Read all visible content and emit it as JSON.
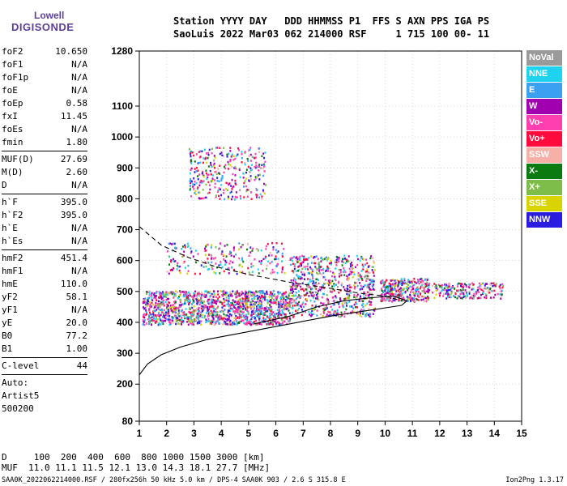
{
  "logo": {
    "line1": "Lowell",
    "line2": "DIGISONDE"
  },
  "header": {
    "line1": "Station YYYY DAY   DDD HHMMSS P1  FFS S AXN PPS IGA PS",
    "line2": "SaoLuis 2022 Mar03 062 214000 RSF     1 715 100 00- 11"
  },
  "params": [
    {
      "name": "foF2",
      "value": "10.650"
    },
    {
      "name": "foF1",
      "value": "N/A"
    },
    {
      "name": "foF1p",
      "value": "N/A"
    },
    {
      "name": "foE",
      "value": "N/A"
    },
    {
      "name": "foEp",
      "value": "0.58"
    },
    {
      "name": "fxI",
      "value": "11.45"
    },
    {
      "name": "foEs",
      "value": "N/A"
    },
    {
      "name": "fmin",
      "value": "1.80",
      "sep": true
    },
    {
      "name": "MUF(D)",
      "value": "27.69"
    },
    {
      "name": "M(D)",
      "value": "2.60"
    },
    {
      "name": "D",
      "value": "N/A",
      "sep": true
    },
    {
      "name": "h`F",
      "value": "395.0"
    },
    {
      "name": "h`F2",
      "value": "395.0"
    },
    {
      "name": "h`E",
      "value": "N/A"
    },
    {
      "name": "h`Es",
      "value": "N/A",
      "sep": true
    },
    {
      "name": "hmF2",
      "value": "451.4"
    },
    {
      "name": "hmF1",
      "value": "N/A"
    },
    {
      "name": "hmE",
      "value": "110.0"
    },
    {
      "name": "yF2",
      "value": "58.1"
    },
    {
      "name": "yF1",
      "value": "N/A"
    },
    {
      "name": "yE",
      "value": "20.0"
    },
    {
      "name": "B0",
      "value": "77.2"
    },
    {
      "name": "B1",
      "value": "1.00",
      "sep": true
    },
    {
      "name": "C-level",
      "value": "44",
      "sep": true
    },
    {
      "name": "Auto:",
      "value": ""
    },
    {
      "name": "Artist5",
      "value": ""
    },
    {
      "name": "500200",
      "value": ""
    }
  ],
  "legend": [
    {
      "label": "NoVal",
      "color": "#9a9a9a"
    },
    {
      "label": "NNE",
      "color": "#1fd3f0"
    },
    {
      "label": "E",
      "color": "#3aa0ef"
    },
    {
      "label": "W",
      "color": "#a100b0"
    },
    {
      "label": "Vo-",
      "color": "#ff3fb0"
    },
    {
      "label": "Vo+",
      "color": "#ff0a3c"
    },
    {
      "label": "SSW",
      "color": "#f7b0a8"
    },
    {
      "label": "X-",
      "color": "#0b7a10"
    },
    {
      "label": "X+",
      "color": "#7fbd4a"
    },
    {
      "label": "SSE",
      "color": "#d9d400"
    },
    {
      "label": "NNW",
      "color": "#2b1de0"
    }
  ],
  "chart_data": {
    "type": "scatter",
    "xlim": [
      1,
      15
    ],
    "ylim": [
      80,
      1280
    ],
    "x_ticks": [
      1,
      2,
      3,
      4,
      5,
      6,
      7,
      8,
      9,
      10,
      11,
      12,
      13,
      14,
      15
    ],
    "y_ticks": [
      80,
      200,
      300,
      400,
      500,
      600,
      700,
      800,
      900,
      1000,
      1100,
      1280
    ],
    "grid": true,
    "profile_solid": [
      [
        1.0,
        230
      ],
      [
        1.3,
        265
      ],
      [
        1.8,
        295
      ],
      [
        2.5,
        320
      ],
      [
        3.5,
        345
      ],
      [
        5,
        370
      ],
      [
        6.5,
        395
      ],
      [
        8,
        420
      ],
      [
        9.5,
        440
      ],
      [
        10.6,
        455
      ]
    ],
    "trace_solid": [
      [
        5.2,
        395
      ],
      [
        6.5,
        420
      ],
      [
        7.5,
        450
      ],
      [
        8.5,
        470
      ],
      [
        9.5,
        480
      ],
      [
        10.3,
        485
      ],
      [
        10.8,
        470
      ],
      [
        10.6,
        455
      ]
    ],
    "trace_dashed": [
      [
        1.0,
        710
      ],
      [
        1.8,
        650
      ],
      [
        2.8,
        610
      ],
      [
        3.8,
        580
      ],
      [
        5,
        555
      ],
      [
        6.5,
        530
      ],
      [
        8,
        510
      ],
      [
        9,
        495
      ],
      [
        10,
        485
      ],
      [
        10.6,
        470
      ]
    ],
    "clusters": [
      {
        "x": [
          1.1,
          6.5
        ],
        "y": [
          395,
          505
        ],
        "n": 1400
      },
      {
        "x": [
          6.5,
          9.6
        ],
        "y": [
          420,
          620
        ],
        "n": 700
      },
      {
        "x": [
          9.8,
          11.6
        ],
        "y": [
          470,
          545
        ],
        "n": 320
      },
      {
        "x": [
          11.7,
          14.3
        ],
        "y": [
          480,
          530
        ],
        "n": 200
      },
      {
        "x": [
          2.0,
          6.3
        ],
        "y": [
          560,
          660
        ],
        "n": 220
      },
      {
        "x": [
          2.8,
          5.6
        ],
        "y": [
          800,
          970
        ],
        "n": 320
      }
    ]
  },
  "bottom": {
    "line1": "D     100  200  400  600  800 1000 1500 3000 [km]",
    "line2": "MUF  11.0 11.1 11.5 12.1 13.0 14.3 18.1 27.7 [MHz]"
  },
  "footer": {
    "left": "SAA0K_2022062214000.RSF / 280fx256h 50 kHz 5.0 km / DPS-4 SAA0K 903 / 2.6 S 315.8 E",
    "right": "Ion2Png 1.3.17"
  }
}
